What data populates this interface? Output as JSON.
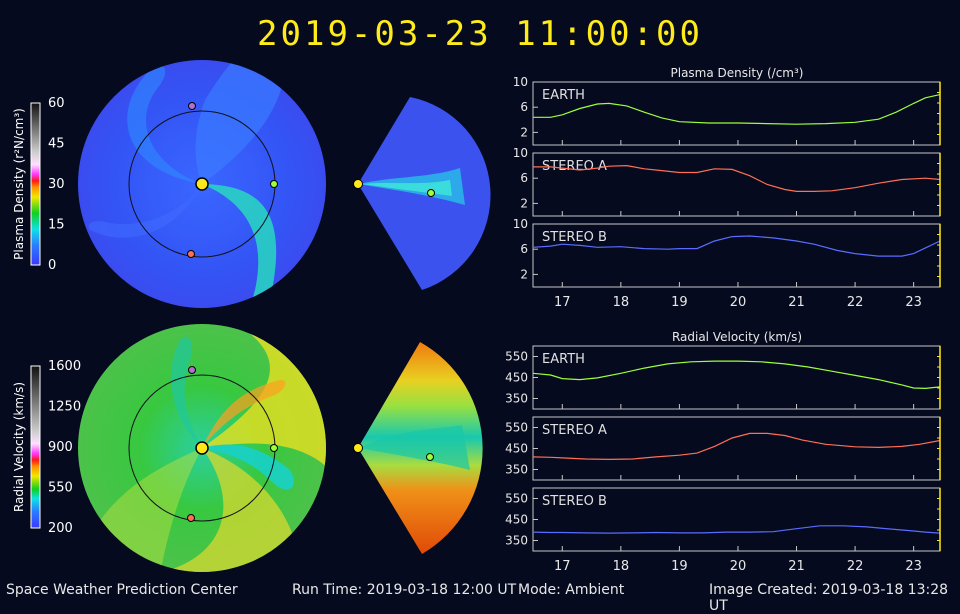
{
  "title": "2019-03-23  11:00:00",
  "footer": {
    "center_name": "Space Weather Prediction Center",
    "run_time": "Run Time: 2019-03-18 12:00 UT",
    "mode": "Mode: Ambient",
    "created": "Image Created: 2019-03-18 13:28 UT"
  },
  "colorbars": [
    {
      "label": "Plasma Density (r²N/cm³)",
      "ticks": [
        "60",
        "45",
        "30",
        "15",
        "0"
      ]
    },
    {
      "label": "Radial Velocity (km/s)",
      "ticks": [
        "1600",
        "1250",
        "900",
        "550",
        "200"
      ]
    }
  ],
  "colors": {
    "earth": "#9dff3a",
    "stereo_a": "#ff6f55",
    "stereo_b": "#5a6cff",
    "sun": "#ffe81a",
    "marker": "#ffe81a"
  },
  "chart_data": [
    {
      "type": "line",
      "title": "Plasma Density (/cm³)",
      "x_ticks": [
        "17",
        "18",
        "19",
        "20",
        "21",
        "22",
        "23"
      ],
      "xlim": [
        16.5,
        23.45
      ],
      "current_time_x": 23.45,
      "panels": [
        {
          "name": "EARTH",
          "ylim": [
            0,
            10
          ],
          "y_ticks": [
            "10",
            "6",
            "2"
          ],
          "color_key": "earth",
          "x": [
            16.5,
            16.8,
            17.0,
            17.3,
            17.6,
            17.8,
            18.1,
            18.4,
            18.7,
            19.0,
            19.5,
            20.0,
            20.5,
            21.0,
            21.5,
            22.0,
            22.4,
            22.7,
            23.0,
            23.2,
            23.45
          ],
          "y": [
            4.4,
            4.4,
            4.8,
            5.8,
            6.5,
            6.6,
            6.2,
            5.2,
            4.3,
            3.7,
            3.5,
            3.5,
            3.4,
            3.3,
            3.4,
            3.6,
            4.1,
            5.2,
            6.6,
            7.5,
            8.0
          ]
        },
        {
          "name": "STEREO A",
          "ylim": [
            0,
            10
          ],
          "y_ticks": [
            "10",
            "6",
            "2"
          ],
          "color_key": "stereo_a",
          "x": [
            16.5,
            16.8,
            17.0,
            17.3,
            17.6,
            17.8,
            18.1,
            18.4,
            18.7,
            19.0,
            19.3,
            19.6,
            19.9,
            20.2,
            20.5,
            20.8,
            21.0,
            21.3,
            21.6,
            22.0,
            22.4,
            22.8,
            23.2,
            23.45
          ],
          "y": [
            7.8,
            7.8,
            7.6,
            7.3,
            7.6,
            7.9,
            8.0,
            7.5,
            7.2,
            6.9,
            6.9,
            7.5,
            7.4,
            6.4,
            5.0,
            4.2,
            3.9,
            3.9,
            4.0,
            4.5,
            5.2,
            5.8,
            6.0,
            5.8
          ]
        },
        {
          "name": "STEREO B",
          "ylim": [
            0,
            10
          ],
          "y_ticks": [
            "10",
            "6",
            "2"
          ],
          "color_key": "stereo_b",
          "x": [
            16.5,
            16.8,
            17.0,
            17.3,
            17.6,
            18.0,
            18.4,
            18.8,
            19.0,
            19.3,
            19.6,
            19.9,
            20.2,
            20.6,
            21.0,
            21.3,
            21.7,
            22.0,
            22.4,
            22.8,
            23.0,
            23.2,
            23.45
          ],
          "y": [
            6.3,
            6.5,
            6.8,
            6.6,
            6.3,
            6.4,
            6.1,
            6.0,
            6.1,
            6.1,
            7.3,
            8.0,
            8.1,
            7.8,
            7.3,
            6.8,
            5.8,
            5.3,
            4.9,
            4.9,
            5.3,
            6.2,
            7.3
          ]
        }
      ]
    },
    {
      "type": "line",
      "title": "Radial Velocity (km/s)",
      "x_ticks": [
        "17",
        "18",
        "19",
        "20",
        "21",
        "22",
        "23"
      ],
      "xlim": [
        16.5,
        23.45
      ],
      "current_time_x": 23.45,
      "panels": [
        {
          "name": "EARTH",
          "ylim": [
            300,
            600
          ],
          "y_ticks": [
            "550",
            "450",
            "350"
          ],
          "color_key": "earth",
          "x": [
            16.5,
            16.8,
            17.0,
            17.3,
            17.6,
            18.0,
            18.4,
            18.8,
            19.2,
            19.6,
            20.0,
            20.4,
            20.8,
            21.2,
            21.6,
            22.0,
            22.4,
            22.8,
            23.0,
            23.2,
            23.45
          ],
          "y": [
            470,
            462,
            445,
            440,
            448,
            470,
            495,
            515,
            525,
            528,
            528,
            525,
            515,
            500,
            480,
            460,
            440,
            415,
            400,
            398,
            405
          ]
        },
        {
          "name": "STEREO A",
          "ylim": [
            300,
            600
          ],
          "y_ticks": [
            "550",
            "450",
            "350"
          ],
          "color_key": "stereo_a",
          "x": [
            16.5,
            16.8,
            17.0,
            17.4,
            17.8,
            18.2,
            18.6,
            19.0,
            19.3,
            19.6,
            19.9,
            20.2,
            20.5,
            20.8,
            21.1,
            21.5,
            22.0,
            22.4,
            22.8,
            23.1,
            23.45
          ],
          "y": [
            410,
            408,
            405,
            400,
            398,
            400,
            410,
            418,
            428,
            460,
            500,
            522,
            522,
            512,
            490,
            470,
            458,
            455,
            460,
            470,
            488
          ]
        },
        {
          "name": "STEREO B",
          "ylim": [
            300,
            600
          ],
          "y_ticks": [
            "550",
            "450",
            "350"
          ],
          "color_key": "stereo_b",
          "x": [
            16.5,
            16.8,
            17.0,
            17.4,
            17.8,
            18.2,
            18.6,
            19.0,
            19.4,
            19.8,
            20.2,
            20.6,
            21.0,
            21.4,
            21.8,
            22.2,
            22.6,
            23.0,
            23.2,
            23.45
          ],
          "y": [
            390,
            388,
            388,
            386,
            385,
            386,
            388,
            386,
            386,
            390,
            390,
            392,
            406,
            420,
            420,
            415,
            405,
            395,
            390,
            385
          ]
        }
      ]
    }
  ]
}
